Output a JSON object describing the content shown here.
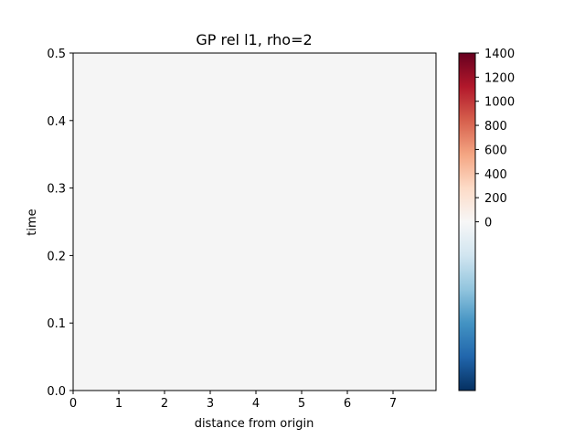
{
  "chart_data": {
    "type": "heatmap",
    "title": "GP rel l1, rho=2",
    "xlabel": "distance from origin",
    "ylabel": "time",
    "xlim": [
      0,
      7.94
    ],
    "ylim": [
      0,
      0.5
    ],
    "x_ticks": [
      "0",
      "1",
      "2",
      "3",
      "4",
      "5",
      "6",
      "7"
    ],
    "x_tick_values": [
      0,
      1,
      2,
      3,
      4,
      5,
      6,
      7
    ],
    "y_ticks": [
      "0.0",
      "0.1",
      "0.2",
      "0.3",
      "0.4",
      "0.5"
    ],
    "y_tick_values": [
      0.0,
      0.1,
      0.2,
      0.3,
      0.4,
      0.5
    ],
    "grid": false,
    "fill_value": 0,
    "fill_color": "#f5f5f5",
    "colorbar": {
      "colormap": "RdBu_r",
      "vmin": -1400,
      "vcenter": 0,
      "vmax": 1400,
      "tick_labels": [
        "0",
        "200",
        "400",
        "600",
        "800",
        "1000",
        "1200",
        "1400"
      ],
      "tick_values": [
        0,
        200,
        400,
        600,
        800,
        1000,
        1200,
        1400
      ],
      "colors": [
        "#053061",
        "#2166ac",
        "#4393c3",
        "#92c5de",
        "#d1e5f0",
        "#f7f7f7",
        "#fddbc7",
        "#f4a582",
        "#d6604d",
        "#b2182b",
        "#67001f"
      ]
    }
  }
}
